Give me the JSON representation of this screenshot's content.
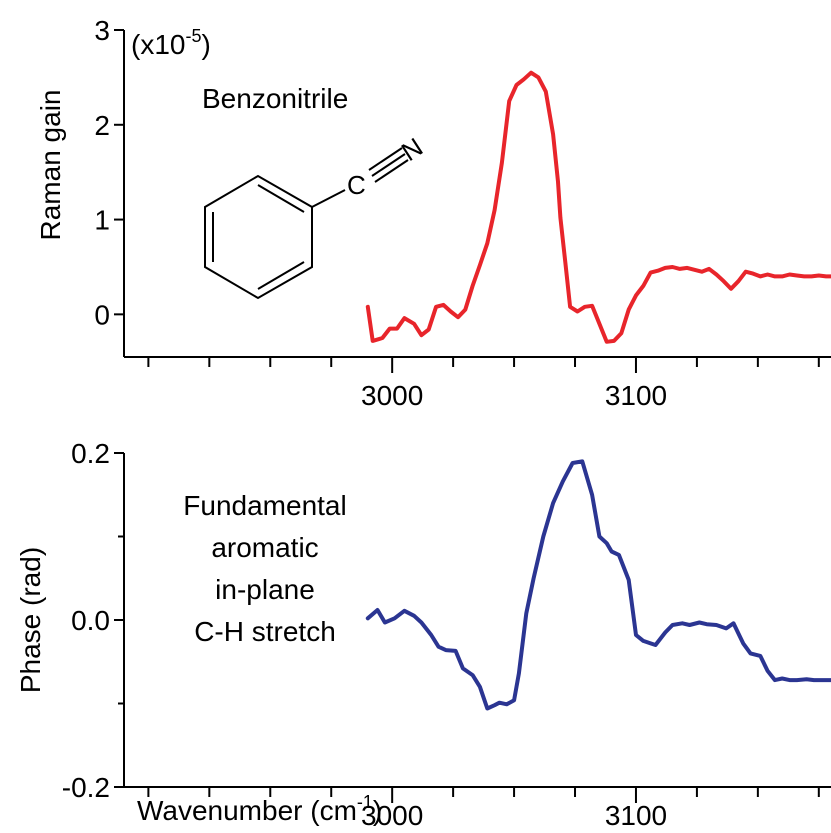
{
  "chart_data": [
    {
      "type": "line",
      "panel": "top",
      "ylabel": "Raman gain",
      "scale_note_base": "(x10",
      "scale_note_exp": "-5",
      "scale_note_close": ")",
      "annotation": "Benzonitrile",
      "molecule_labels": {
        "carbon": "C",
        "nitrogen": "N"
      },
      "xlim": [
        2890,
        3180
      ],
      "ylim": [
        -0.45,
        3.0
      ],
      "yticks": [
        "0",
        "1",
        "2",
        "3"
      ],
      "xtick_labels": [
        "3000",
        "3100"
      ],
      "series": [
        {
          "color": "#e8252b",
          "x": [
            2990,
            2992,
            2996,
            2999,
            3002,
            3005,
            3009,
            3012,
            3015,
            3018,
            3021,
            3024,
            3027,
            3030,
            3033,
            3036,
            3039,
            3042,
            3045,
            3048,
            3051,
            3054,
            3057,
            3060,
            3063,
            3066,
            3068,
            3069,
            3071,
            3073,
            3076,
            3079,
            3082,
            3085,
            3088,
            3091,
            3094,
            3097,
            3100,
            3103,
            3106,
            3109,
            3112,
            3115,
            3118,
            3121,
            3124,
            3127,
            3130,
            3133,
            3136,
            3139,
            3142,
            3145,
            3148,
            3151,
            3154,
            3157,
            3160,
            3163,
            3166,
            3169,
            3172,
            3175,
            3178,
            3180
          ],
          "y": [
            0.08,
            -0.28,
            -0.25,
            -0.15,
            -0.15,
            -0.04,
            -0.1,
            -0.22,
            -0.16,
            0.08,
            0.1,
            0.03,
            -0.03,
            0.05,
            0.3,
            0.52,
            0.75,
            1.1,
            1.6,
            2.25,
            2.42,
            2.48,
            2.55,
            2.5,
            2.35,
            1.9,
            1.4,
            1.02,
            0.55,
            0.08,
            0.03,
            0.08,
            0.09,
            -0.1,
            -0.29,
            -0.28,
            -0.2,
            0.05,
            0.2,
            0.3,
            0.44,
            0.46,
            0.49,
            0.5,
            0.48,
            0.49,
            0.47,
            0.45,
            0.48,
            0.42,
            0.35,
            0.27,
            0.35,
            0.45,
            0.43,
            0.4,
            0.42,
            0.4,
            0.4,
            0.42,
            0.41,
            0.4,
            0.4,
            0.41,
            0.4,
            0.4
          ]
        }
      ]
    },
    {
      "type": "line",
      "panel": "bottom",
      "ylabel": "Phase (rad)",
      "xlabel_base": "Wavenumber (cm",
      "xlabel_exp": "-1",
      "xlabel_close": ")",
      "annotation_lines": [
        "Fundamental",
        "aromatic",
        "in-plane",
        "C-H stretch"
      ],
      "xlim": [
        2890,
        3180
      ],
      "ylim": [
        -0.2,
        0.2
      ],
      "yticks": [
        "-0.2",
        "0.0",
        "0.2"
      ],
      "xtick_labels": [
        "3000",
        "3100"
      ],
      "series": [
        {
          "color": "#2b3592",
          "x": [
            2990,
            2994,
            2997,
            3001,
            3005,
            3009,
            3012,
            3016,
            3019,
            3022,
            3026,
            3029,
            3033,
            3036,
            3039,
            3042,
            3044,
            3047,
            3050,
            3052,
            3055,
            3058,
            3062,
            3066,
            3070,
            3074,
            3078,
            3082,
            3085,
            3088,
            3090,
            3093,
            3097,
            3100,
            3103,
            3106,
            3108,
            3112,
            3115,
            3119,
            3122,
            3126,
            3129,
            3133,
            3137,
            3140,
            3144,
            3147,
            3151,
            3154,
            3157,
            3160,
            3163,
            3166,
            3170,
            3173,
            3176,
            3180
          ],
          "y": [
            0.002,
            0.012,
            -0.003,
            0.002,
            0.011,
            0.005,
            -0.003,
            -0.018,
            -0.032,
            -0.036,
            -0.037,
            -0.058,
            -0.066,
            -0.08,
            -0.106,
            -0.102,
            -0.099,
            -0.101,
            -0.096,
            -0.064,
            0.008,
            0.05,
            0.1,
            0.14,
            0.166,
            0.188,
            0.19,
            0.15,
            0.1,
            0.092,
            0.082,
            0.078,
            0.048,
            -0.018,
            -0.025,
            -0.028,
            -0.03,
            -0.015,
            -0.006,
            -0.004,
            -0.006,
            -0.003,
            -0.005,
            -0.006,
            -0.01,
            -0.004,
            -0.028,
            -0.04,
            -0.043,
            -0.061,
            -0.072,
            -0.07,
            -0.072,
            -0.072,
            -0.071,
            -0.072,
            -0.072,
            -0.072
          ]
        }
      ]
    }
  ]
}
